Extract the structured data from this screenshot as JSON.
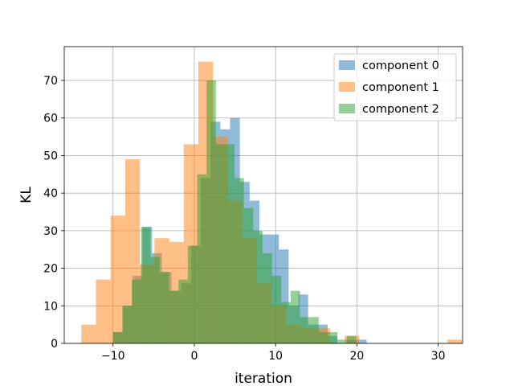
{
  "chart_data": {
    "type": "bar",
    "subtype": "overlapping histogram",
    "title": "",
    "xlabel": "iteration",
    "ylabel": "KL",
    "xlim": [
      -16,
      33
    ],
    "ylim": [
      0,
      79
    ],
    "grid": true,
    "legend_position": "top-right",
    "x_ticks": [
      -10,
      0,
      10,
      20,
      30
    ],
    "x_tick_labels": [
      "−10",
      "0",
      "10",
      "20",
      "30"
    ],
    "y_ticks": [
      0,
      10,
      20,
      30,
      40,
      50,
      60,
      70
    ],
    "y_tick_labels": [
      "0",
      "10",
      "20",
      "30",
      "40",
      "50",
      "60",
      "70"
    ],
    "series": [
      {
        "name": "component 0",
        "color": "#1f77b4",
        "opacity": 0.5,
        "bin_start": -10.0,
        "bin_width": 1.2,
        "counts": [
          3,
          10,
          18,
          31,
          24,
          19,
          14,
          16,
          26,
          44,
          59,
          57,
          60,
          43,
          38,
          29,
          29,
          25,
          10,
          13,
          5,
          5,
          2,
          0,
          1,
          1
        ]
      },
      {
        "name": "component 1",
        "color": "#ff7f0e",
        "opacity": 0.5,
        "bin_start": -13.9,
        "bin_width": 1.8,
        "counts": [
          5,
          17,
          34,
          49,
          21,
          28,
          27,
          53,
          75,
          55,
          38,
          28,
          16,
          10,
          5,
          4,
          4,
          0,
          2,
          0,
          0,
          0,
          0,
          0,
          0,
          1
        ]
      },
      {
        "name": "component 2",
        "color": "#2ca02c",
        "opacity": 0.5,
        "bin_start": -10.0,
        "bin_width": 1.15,
        "counts": [
          3,
          10,
          17,
          31,
          23,
          19,
          14,
          17,
          26,
          45,
          70,
          53,
          53,
          44,
          36,
          30,
          24,
          18,
          11,
          14,
          7,
          7,
          3,
          3,
          1,
          2
        ]
      }
    ]
  }
}
